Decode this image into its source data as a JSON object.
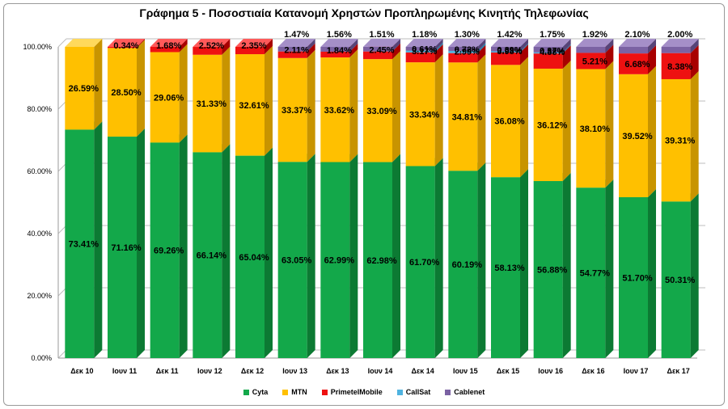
{
  "chart_data": {
    "type": "bar",
    "stacked": true,
    "three_d": true,
    "title": "Γράφημα 5 - Ποσοστιαία Κατανομή Χρηστών Προπληρωμένης Κινητής Τηλεφωνίας",
    "categories": [
      "Δεκ 10",
      "Ιουν 11",
      "Δεκ 11",
      "Ιουν 12",
      "Δεκ 12",
      "Ιουν 13",
      "Δεκ 13",
      "Ιουν 14",
      "Δεκ 14",
      "Ιουν 15",
      "Δεκ 15",
      "Ιουν 16",
      "Δεκ 16",
      "Ιουν 17",
      "Δεκ 17"
    ],
    "ylim": [
      0,
      100
    ],
    "yticks": [
      "0.00%",
      "20.00%",
      "40.00%",
      "60.00%",
      "80.00%",
      "100.00%"
    ],
    "grid": true,
    "legend_position": "bottom",
    "series": [
      {
        "name": "Cyta",
        "color": "#13a84a",
        "top_color": "#3fd46e",
        "side_color": "#0c7a33",
        "values": [
          73.41,
          71.16,
          69.26,
          66.14,
          65.04,
          63.05,
          62.99,
          62.98,
          61.7,
          60.19,
          58.13,
          56.88,
          54.77,
          51.7,
          50.31
        ],
        "labels": [
          "73.41%",
          "71.16%",
          "69.26%",
          "66.14%",
          "65.04%",
          "63.05%",
          "62.99%",
          "62.98%",
          "61.70%",
          "60.19%",
          "58.13%",
          "56.88%",
          "54.77%",
          "51.70%",
          "50.31%"
        ]
      },
      {
        "name": "MTN",
        "color": "#ffc000",
        "top_color": "#ffd95c",
        "side_color": "#c89400",
        "values": [
          26.59,
          28.5,
          29.06,
          31.33,
          32.61,
          33.37,
          33.62,
          33.09,
          33.34,
          34.81,
          36.08,
          36.12,
          38.1,
          39.52,
          39.31
        ],
        "labels": [
          "26.59%",
          "28.50%",
          "29.06%",
          "31.33%",
          "32.61%",
          "33.37%",
          "33.62%",
          "33.09%",
          "33.34%",
          "34.81%",
          "36.08%",
          "36.12%",
          "38.10%",
          "39.52%",
          "39.31%"
        ]
      },
      {
        "name": "PrimetelMobile",
        "color": "#ee1111",
        "top_color": "#ff5a5a",
        "side_color": "#a80000",
        "values": [
          0,
          0.34,
          1.68,
          2.52,
          2.35,
          2.11,
          1.84,
          2.45,
          3.17,
          2.99,
          3.98,
          4.88,
          5.21,
          6.68,
          8.38
        ],
        "labels": [
          "",
          "0.34%",
          "1.68%",
          "2.52%",
          "2.35%",
          "2.11%",
          "1.84%",
          "2.45%",
          "3.17%",
          "2.99%",
          "3.98%",
          "4.88%",
          "5.21%",
          "6.68%",
          "8.38%"
        ]
      },
      {
        "name": "CallSat",
        "color": "#4fb3e0",
        "top_color": "#8fd2f0",
        "side_color": "#2a7fa6",
        "values": [
          0,
          0,
          0,
          0,
          0,
          0,
          0,
          0,
          0.61,
          0.72,
          0.39,
          0.37,
          0,
          0,
          0
        ],
        "labels": [
          "",
          "",
          "",
          "",
          "",
          "",
          "",
          "",
          "0.61%",
          "0.72%",
          "0.39%",
          "0.37%",
          "",
          "",
          ""
        ]
      },
      {
        "name": "Cablenet",
        "color": "#7b62a3",
        "top_color": "#a58fc8",
        "side_color": "#564478",
        "values": [
          0,
          0,
          0,
          0,
          0,
          1.47,
          1.56,
          1.51,
          1.18,
          1.3,
          1.42,
          1.75,
          1.92,
          2.1,
          2.0
        ],
        "labels": [
          "",
          "",
          "",
          "",
          "",
          "1.47%",
          "1.56%",
          "1.51%",
          "1.18%",
          "1.30%",
          "1.42%",
          "1.75%",
          "1.92%",
          "2.10%",
          "2.00%"
        ]
      }
    ]
  }
}
